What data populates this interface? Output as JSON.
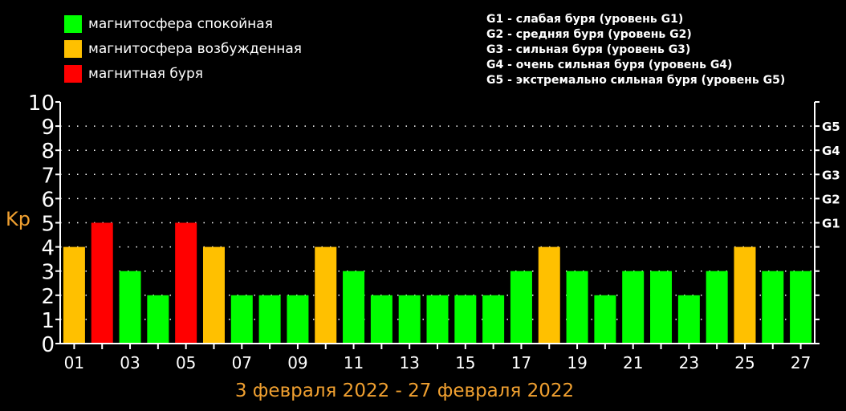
{
  "legend": {
    "items": [
      {
        "label": "магнитосфера спокойная",
        "color": "#00ff00"
      },
      {
        "label": "магнитосфера возбужденная",
        "color": "#ffc000"
      },
      {
        "label": "магнитная буря",
        "color": "#ff0000"
      }
    ]
  },
  "g_legend": [
    "G1 - слабая буря (уровень G1)",
    "G2 - средняя буря (уровень G2)",
    "G3 - сильная буря (уровень G3)",
    "G4 - очень сильная буря (уровень G4)",
    "G5 - экстремально сильная буря (уровень G5)"
  ],
  "chart_data": {
    "type": "bar",
    "title": "3 февраля 2022 - 27 февраля 2022",
    "ylabel": "Kp",
    "ylim": [
      0,
      10
    ],
    "yticks": [
      "0",
      "1",
      "2",
      "3",
      "4",
      "5",
      "6",
      "7",
      "8",
      "9",
      "10"
    ],
    "right_ticks": [
      {
        "value": 5,
        "label": "G1"
      },
      {
        "value": 6,
        "label": "G2"
      },
      {
        "value": 7,
        "label": "G3"
      },
      {
        "value": 8,
        "label": "G4"
      },
      {
        "value": 9,
        "label": "G5"
      }
    ],
    "x_tick_labels": [
      "01",
      "03",
      "05",
      "07",
      "09",
      "11",
      "13",
      "15",
      "17",
      "19",
      "21",
      "23",
      "25",
      "27"
    ],
    "values": [
      4,
      5,
      3,
      2,
      5,
      4,
      2,
      2,
      2,
      4,
      3,
      2,
      2,
      2,
      2,
      2,
      3,
      4,
      3,
      2,
      3,
      3,
      2,
      3,
      4,
      3,
      3
    ],
    "colors": {
      "quiet": "#00ff00",
      "active": "#ffc000",
      "storm": "#ff0000",
      "orange_text": "#f0a030"
    },
    "grid": true
  }
}
